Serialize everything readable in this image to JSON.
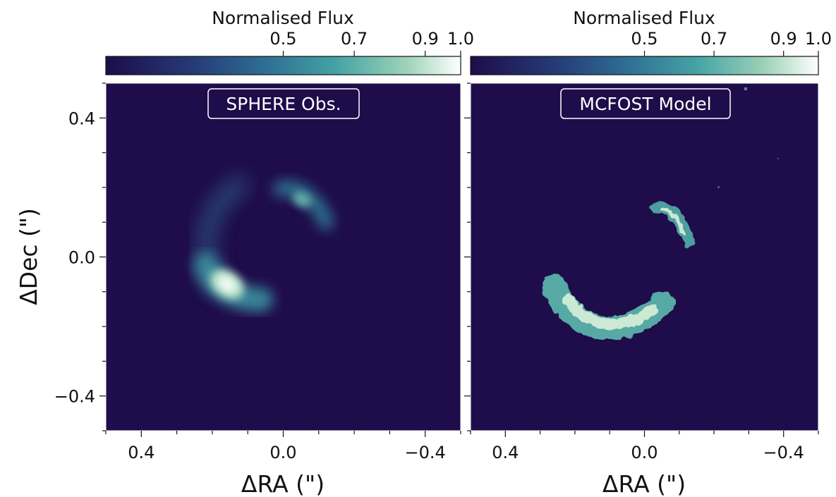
{
  "figure": {
    "ylabel": "ΔDec (\")",
    "background": "#ffffff",
    "plot_background": "#1f0c4a"
  },
  "chart_data": [
    {
      "type": "heatmap",
      "panel_label": "SPHERE Obs.",
      "colorbar": {
        "label": "Normalised Flux",
        "ticks": [
          "0.5",
          "0.7",
          "0.9",
          "1.0"
        ],
        "tick_values": [
          0.5,
          0.7,
          0.9,
          1.0
        ],
        "range": [
          0.0,
          1.0
        ],
        "colors": [
          "#1f0c4a",
          "#253c78",
          "#2f6e93",
          "#45a3a4",
          "#9fd3b9",
          "#ffffff"
        ]
      },
      "xlabel": "ΔRA (\")",
      "x_ticks": [
        "0.4",
        "0.0",
        "−0.4"
      ],
      "x_tick_values": [
        0.4,
        0.0,
        -0.4
      ],
      "xlim": [
        0.5,
        -0.5
      ],
      "ylabel": "ΔDec (\")",
      "y_ticks": [
        "0.4",
        "0.0",
        "−0.4"
      ],
      "y_tick_values": [
        0.4,
        0.0,
        -0.4
      ],
      "ylim": [
        -0.5,
        0.5
      ]
    },
    {
      "type": "heatmap",
      "panel_label": "MCFOST Model",
      "colorbar": {
        "label": "Normalised Flux",
        "ticks": [
          "0.5",
          "0.7",
          "0.9",
          "1.0"
        ],
        "tick_values": [
          0.5,
          0.7,
          0.9,
          1.0
        ],
        "range": [
          0.0,
          1.0
        ],
        "colors": [
          "#1f0c4a",
          "#253c78",
          "#2f6e93",
          "#45a3a4",
          "#9fd3b9",
          "#ffffff"
        ]
      },
      "xlabel": "ΔRA (\")",
      "x_ticks": [
        "0.4",
        "0.0",
        "−0.4"
      ],
      "x_tick_values": [
        0.4,
        0.0,
        -0.4
      ],
      "xlim": [
        0.5,
        -0.5
      ],
      "ylim": [
        -0.5,
        0.5
      ]
    }
  ]
}
